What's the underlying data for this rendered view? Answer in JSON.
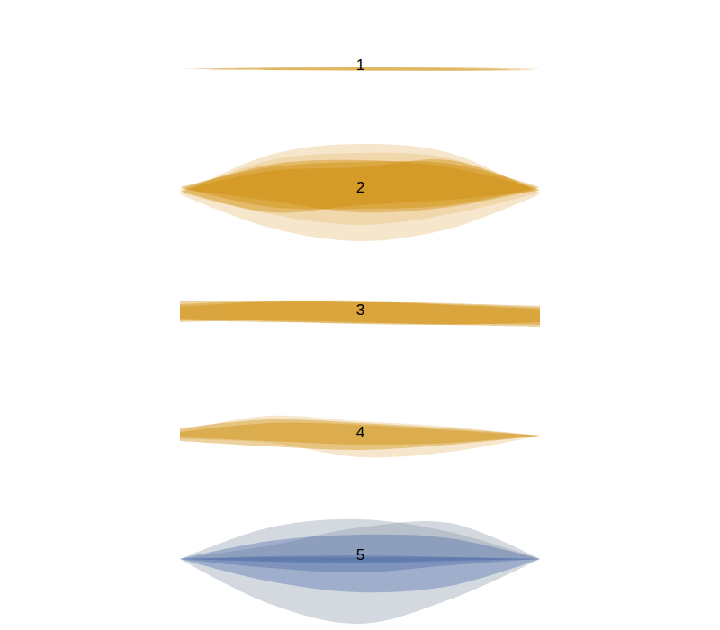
{
  "chart_data": {
    "type": "area",
    "tick_labels": false,
    "grid": false,
    "x": [
      0,
      25,
      50,
      75,
      100
    ],
    "series": [
      {
        "name": "1",
        "shapes": [
          {
            "color": "#cc8800",
            "upper": [
              -5,
              -3,
              -2.5,
              -3,
              -5
            ],
            "lower": [
              -5,
              -6,
              -7,
              -6.5,
              -5
            ]
          },
          {
            "color": "#cc8800",
            "upper": [
              -5,
              -4,
              -3,
              -4,
              -6
            ],
            "lower": [
              -5,
              -6,
              -6,
              -7,
              -6
            ]
          }
        ]
      },
      {
        "name": "2",
        "shapes": [
          {
            "color": "#e8c07a",
            "upper": [
              -8,
              36,
              48,
              38,
              -8
            ],
            "lower": [
              -8,
              -45,
              -60,
              -46,
              -8
            ]
          },
          {
            "color": "#e8c07a",
            "upper": [
              -6,
              30,
              38,
              32,
              -6
            ],
            "lower": [
              -6,
              -30,
              -42,
              -30,
              -6
            ]
          },
          {
            "color": "#cc8800",
            "upper": [
              -2,
              25,
              30,
              22,
              -2
            ],
            "lower": [
              -2,
              -15,
              -28,
              -22,
              -2
            ]
          },
          {
            "color": "#cc8800",
            "upper": [
              -4,
              18,
              22,
              30,
              -4
            ],
            "lower": [
              -4,
              -28,
              -20,
              -14,
              -4
            ]
          },
          {
            "color": "#cc8800",
            "upper": [
              0,
              22,
              28,
              26,
              0
            ],
            "lower": [
              0,
              -22,
              -24,
              -20,
              0
            ]
          }
        ]
      },
      {
        "name": "3",
        "shapes": [
          {
            "color": "#cc8800",
            "upper": [
              10,
              10,
              9,
              6,
              2
            ],
            "lower": [
              -10,
              -13,
              -16,
              -17,
              -14
            ]
          },
          {
            "color": "#cc8800",
            "upper": [
              6,
              10,
              9,
              5,
              0
            ],
            "lower": [
              -12,
              -14,
              -15,
              -16,
              -17
            ]
          },
          {
            "color": "#cc8800",
            "upper": [
              3,
              9,
              10,
              7,
              4
            ],
            "lower": [
              -14,
              -12,
              -14,
              -17,
              -19
            ]
          }
        ]
      },
      {
        "name": "4",
        "shapes": [
          {
            "color": "#e8c07a",
            "upper": [
              2,
              18,
              12,
              6,
              -4
            ],
            "lower": [
              -8,
              -12,
              -28,
              -22,
              -4
            ]
          },
          {
            "color": "#cc8800",
            "upper": [
              4,
              14,
              10,
              4,
              -4
            ],
            "lower": [
              -10,
              -16,
              -20,
              -14,
              -4
            ]
          },
          {
            "color": "#cc8800",
            "upper": [
              0,
              10,
              8,
              2,
              -4
            ],
            "lower": [
              -6,
              -10,
              -14,
              -12,
              -4
            ]
          }
        ]
      },
      {
        "name": "5",
        "shapes": [
          {
            "color": "#8c9cac",
            "upper": [
              -5,
              30,
              39,
              25,
              -5
            ],
            "lower": [
              -5,
              -8,
              -10,
              -8,
              -5
            ]
          },
          {
            "color": "#8c9cac",
            "upper": [
              -5,
              -4,
              -4,
              -5,
              -5
            ],
            "lower": [
              -5,
              -55,
              -77,
              -50,
              -5
            ]
          },
          {
            "color": "#8c9cac",
            "upper": [
              -5,
              10,
              30,
              35,
              -5
            ],
            "lower": [
              -5,
              -6,
              -7,
              -6,
              -5
            ]
          },
          {
            "color": "#4a6aa8",
            "upper": [
              -5,
              -3,
              -3,
              -3,
              -5
            ],
            "lower": [
              -5,
              -30,
              -42,
              -35,
              -5
            ]
          },
          {
            "color": "#4a6aa8",
            "upper": [
              -5,
              15,
              22,
              18,
              -5
            ],
            "lower": [
              -5,
              -15,
              -20,
              -12,
              -5
            ]
          },
          {
            "color": "#4a6aa8",
            "upper": [
              -5,
              -2,
              -1,
              -3,
              -5
            ],
            "lower": [
              -5,
              -8,
              -9,
              -7,
              -5
            ]
          }
        ]
      }
    ]
  }
}
